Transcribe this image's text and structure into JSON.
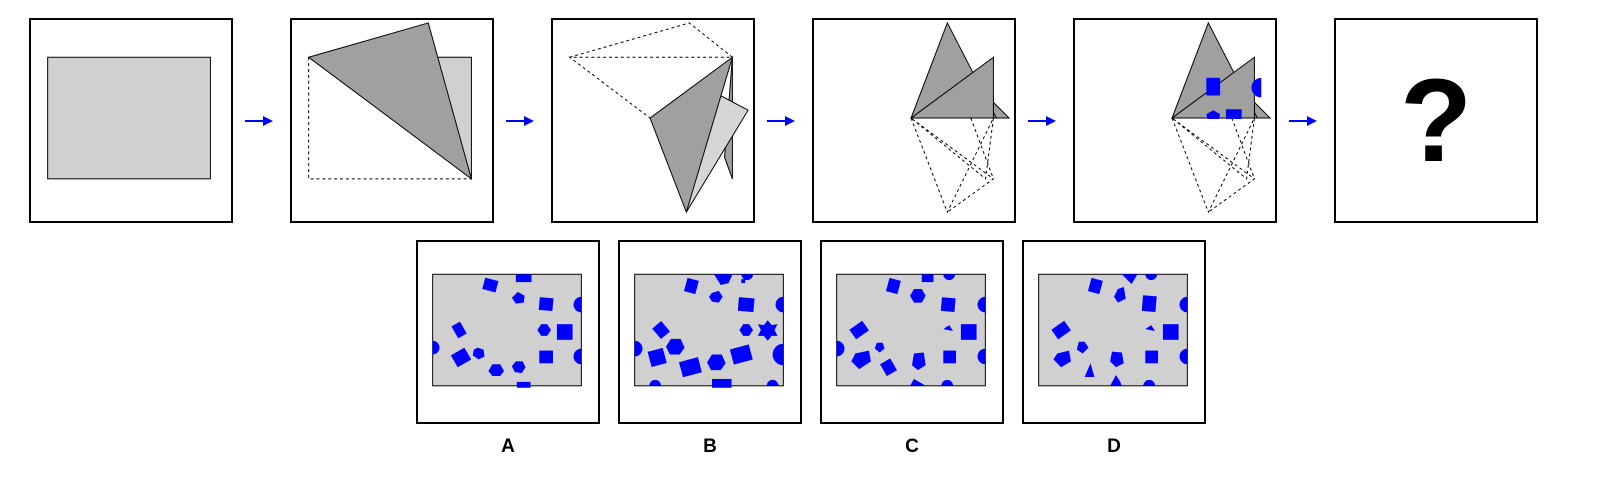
{
  "sequence": {
    "question_mark": "?"
  },
  "options": [
    {
      "label": "A"
    },
    {
      "label": "B"
    },
    {
      "label": "C"
    },
    {
      "label": "D"
    }
  ],
  "colors": {
    "paper": "#d0d0d0",
    "folded": "#a0a0a0",
    "folded_light": "#d6d6d6",
    "hole": "#0000ff",
    "arrow": "#0000ff"
  }
}
